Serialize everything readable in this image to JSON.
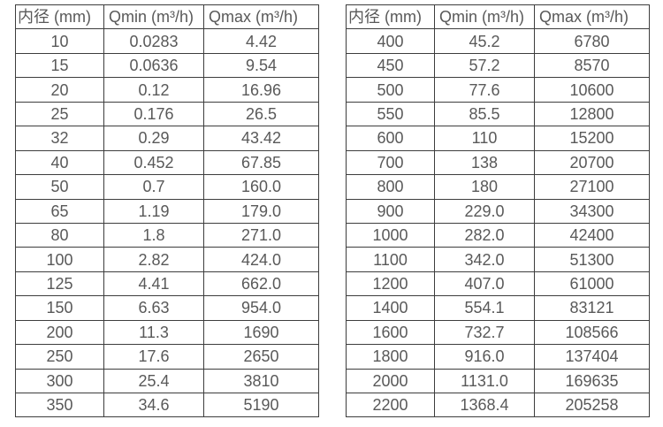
{
  "colors": {
    "background": "#ffffff",
    "text": "#595959",
    "border": "#3d3d3d"
  },
  "tables": [
    {
      "name": "flow-spec-table-small-diameters",
      "headers": [
        "内径 (mm)",
        "Qmin (m³/h)",
        "Qmax (m³/h)"
      ],
      "rows": [
        [
          "10",
          "0.0283",
          "4.42"
        ],
        [
          "15",
          "0.0636",
          "9.54"
        ],
        [
          "20",
          "0.12",
          "16.96"
        ],
        [
          "25",
          "0.176",
          "26.5"
        ],
        [
          "32",
          "0.29",
          "43.42"
        ],
        [
          "40",
          "0.452",
          "67.85"
        ],
        [
          "50",
          "0.7",
          "160.0"
        ],
        [
          "65",
          "1.19",
          "179.0"
        ],
        [
          "80",
          "1.8",
          "271.0"
        ],
        [
          "100",
          "2.82",
          "424.0"
        ],
        [
          "125",
          "4.41",
          "662.0"
        ],
        [
          "150",
          "6.63",
          "954.0"
        ],
        [
          "200",
          "11.3",
          "1690"
        ],
        [
          "250",
          "17.6",
          "2650"
        ],
        [
          "300",
          "25.4",
          "3810"
        ],
        [
          "350",
          "34.6",
          "5190"
        ]
      ]
    },
    {
      "name": "flow-spec-table-large-diameters",
      "headers": [
        "内径 (mm)",
        "Qmin (m³/h)",
        "Qmax (m³/h)"
      ],
      "rows": [
        [
          "400",
          "45.2",
          "6780"
        ],
        [
          "450",
          "57.2",
          "8570"
        ],
        [
          "500",
          "77.6",
          "10600"
        ],
        [
          "550",
          "85.5",
          "12800"
        ],
        [
          "600",
          "110",
          "15200"
        ],
        [
          "700",
          "138",
          "20700"
        ],
        [
          "800",
          "180",
          "27100"
        ],
        [
          "900",
          "229.0",
          "34300"
        ],
        [
          "1000",
          "282.0",
          "42400"
        ],
        [
          "1100",
          "342.0",
          "51300"
        ],
        [
          "1200",
          "407.0",
          "61000"
        ],
        [
          "1400",
          "554.1",
          "83121"
        ],
        [
          "1600",
          "732.7",
          "108566"
        ],
        [
          "1800",
          "916.0",
          "137404"
        ],
        [
          "2000",
          "1131.0",
          "169635"
        ],
        [
          "2200",
          "1368.4",
          "205258"
        ]
      ]
    }
  ]
}
